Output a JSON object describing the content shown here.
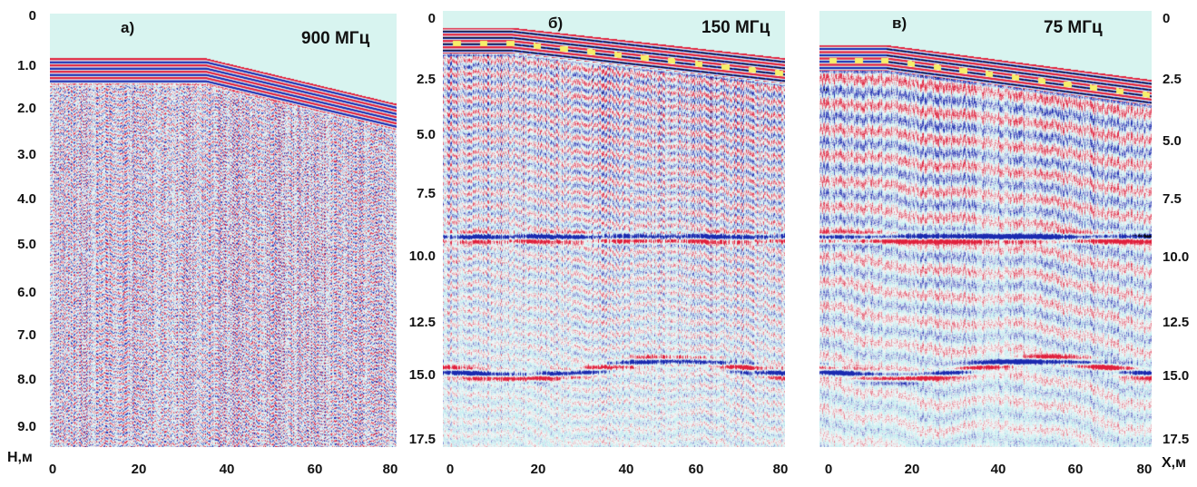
{
  "chart_data": [
    {
      "type": "heatmap",
      "panel_label": "а)",
      "frequency_label": "900 МГц",
      "y_tick_labels": [
        "0",
        "1.0",
        "2.0",
        "3.0",
        "4.0",
        "5.0",
        "6.0",
        "7.0",
        "8.0",
        "9.0"
      ],
      "x_tick_labels": [
        "0",
        "20",
        "40",
        "60",
        "80"
      ],
      "y_axis_name": "Н,м",
      "x_axis_name": "",
      "xlim": [
        0,
        82
      ],
      "ylim": [
        0,
        9.5
      ]
    },
    {
      "type": "heatmap",
      "panel_label": "б)",
      "frequency_label": "150 МГц",
      "y_tick_labels": [
        "0",
        "2.5",
        "5.0",
        "7.5",
        "10.0",
        "12.5",
        "15.0",
        "17.5"
      ],
      "x_tick_labels": [
        "0",
        "20",
        "40",
        "60",
        "80"
      ],
      "y_axis_name": "",
      "x_axis_name": "",
      "xlim": [
        0,
        80
      ],
      "ylim": [
        0,
        17.5
      ]
    },
    {
      "type": "heatmap",
      "panel_label": "в)",
      "frequency_label": "75 МГц",
      "y_tick_labels": [
        "0",
        "2.5",
        "5.0",
        "7.5",
        "10.0",
        "12.5",
        "15.0",
        "17.5"
      ],
      "x_tick_labels": [
        "0",
        "20",
        "40",
        "60",
        "80"
      ],
      "y_axis_name": "",
      "x_axis_name": "Х,м",
      "xlim": [
        0,
        80
      ],
      "ylim": [
        0,
        17.5
      ]
    }
  ],
  "colors": {
    "positive": "#e0203c",
    "negative": "#1a2ab0",
    "strong_negative": "#0a0a14",
    "highlight": "#f6f06a",
    "background_low": "#bfeef0",
    "background_mid": "#f4f8f8",
    "sky": "#d8f4f0"
  }
}
